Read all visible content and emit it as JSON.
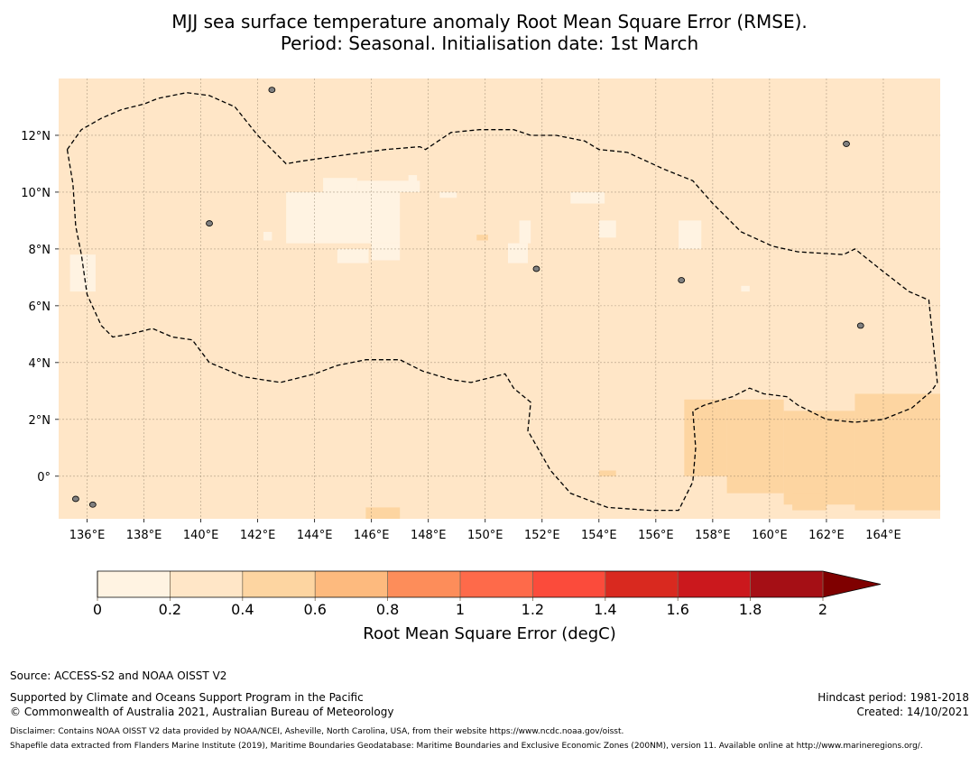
{
  "title_line1": "MJJ sea surface temperature anomaly Root Mean Square Error (RMSE).",
  "title_line2": "Period: Seasonal. Initialisation date: 1st March",
  "map": {
    "lon_range": [
      135.0,
      166.0
    ],
    "lat_range": [
      -1.5,
      14.0
    ],
    "lon_ticks": [
      "136°E",
      "138°E",
      "140°E",
      "142°E",
      "144°E",
      "146°E",
      "148°E",
      "150°E",
      "152°E",
      "154°E",
      "156°E",
      "158°E",
      "160°E",
      "162°E",
      "164°E"
    ],
    "lon_tick_values": [
      136,
      138,
      140,
      142,
      144,
      146,
      148,
      150,
      152,
      154,
      156,
      158,
      160,
      162,
      164
    ],
    "lat_ticks": [
      "12°N",
      "10°N",
      "8°N",
      "6°N",
      "4°N",
      "2°N",
      "0°"
    ],
    "lat_tick_values": [
      12,
      10,
      8,
      6,
      4,
      2,
      0
    ],
    "background_class": "0.2-0.4",
    "dominant_rmse_range_degC": [
      0.2,
      0.4
    ],
    "eez_boundary": [
      [
        135.3,
        11.5
      ],
      [
        135.8,
        12.2
      ],
      [
        136.5,
        12.6
      ],
      [
        137.2,
        12.9
      ],
      [
        138.0,
        13.1
      ],
      [
        138.5,
        13.3
      ],
      [
        139.5,
        13.5
      ],
      [
        140.3,
        13.4
      ],
      [
        141.2,
        13.0
      ],
      [
        142.0,
        12.0
      ],
      [
        143.0,
        11.0
      ],
      [
        143.6,
        11.1
      ],
      [
        145.0,
        11.3
      ],
      [
        146.5,
        11.5
      ],
      [
        147.7,
        11.6
      ],
      [
        147.9,
        11.5
      ],
      [
        148.8,
        12.1
      ],
      [
        149.8,
        12.2
      ],
      [
        151.0,
        12.2
      ],
      [
        151.6,
        12.0
      ],
      [
        152.5,
        12.0
      ],
      [
        153.5,
        11.8
      ],
      [
        154.0,
        11.5
      ],
      [
        155.0,
        11.4
      ],
      [
        156.3,
        10.8
      ],
      [
        157.3,
        10.4
      ],
      [
        158.0,
        9.6
      ],
      [
        159.0,
        8.6
      ],
      [
        160.1,
        8.1
      ],
      [
        161.0,
        7.9
      ],
      [
        162.6,
        7.8
      ],
      [
        163.0,
        8.0
      ],
      [
        164.0,
        7.2
      ],
      [
        164.9,
        6.5
      ],
      [
        165.6,
        6.2
      ],
      [
        165.9,
        3.3
      ],
      [
        165.7,
        3.0
      ],
      [
        165.0,
        2.4
      ],
      [
        164.0,
        2.0
      ],
      [
        163.0,
        1.9
      ],
      [
        162.0,
        2.0
      ],
      [
        161.0,
        2.5
      ],
      [
        160.6,
        2.8
      ],
      [
        159.8,
        2.9
      ],
      [
        159.3,
        3.1
      ],
      [
        158.7,
        2.8
      ],
      [
        157.7,
        2.5
      ],
      [
        157.3,
        2.3
      ],
      [
        157.4,
        1.0
      ],
      [
        157.3,
        -0.2
      ],
      [
        156.8,
        -1.2
      ],
      [
        155.8,
        -1.2
      ],
      [
        154.3,
        -1.1
      ],
      [
        153.0,
        -0.6
      ],
      [
        152.3,
        0.2
      ],
      [
        151.5,
        1.6
      ],
      [
        151.6,
        2.6
      ],
      [
        151.0,
        3.1
      ],
      [
        150.7,
        3.6
      ],
      [
        150.3,
        3.5
      ],
      [
        149.5,
        3.3
      ],
      [
        148.8,
        3.4
      ],
      [
        147.8,
        3.7
      ],
      [
        147.0,
        4.1
      ],
      [
        145.8,
        4.1
      ],
      [
        144.8,
        3.9
      ],
      [
        144.0,
        3.6
      ],
      [
        142.8,
        3.3
      ],
      [
        141.5,
        3.5
      ],
      [
        140.3,
        4.0
      ],
      [
        139.7,
        4.8
      ],
      [
        139.0,
        4.9
      ],
      [
        138.3,
        5.2
      ],
      [
        137.5,
        5.0
      ],
      [
        136.9,
        4.9
      ],
      [
        136.5,
        5.3
      ],
      [
        136.0,
        6.4
      ],
      [
        135.8,
        7.8
      ],
      [
        135.6,
        8.8
      ],
      [
        135.5,
        10.3
      ],
      [
        135.3,
        11.5
      ]
    ],
    "patches_0_to_0_2": [
      [
        143.0,
        10.0,
        147.0,
        8.2
      ],
      [
        144.3,
        10.5,
        145.5,
        10.0
      ],
      [
        145.5,
        10.4,
        147.7,
        10.0
      ],
      [
        146.0,
        8.2,
        147.0,
        7.6
      ],
      [
        144.8,
        8.0,
        145.9,
        7.5
      ],
      [
        148.4,
        10.0,
        149.0,
        9.8
      ],
      [
        147.3,
        10.6,
        147.6,
        10.2
      ],
      [
        151.2,
        9.0,
        151.6,
        8.2
      ],
      [
        150.8,
        8.2,
        151.5,
        7.5
      ],
      [
        154.0,
        9.0,
        154.6,
        8.4
      ],
      [
        156.8,
        9.0,
        157.6,
        8.0
      ],
      [
        153.0,
        10.0,
        154.2,
        9.6
      ],
      [
        135.4,
        7.8,
        136.3,
        6.5
      ],
      [
        142.2,
        8.6,
        142.5,
        8.3
      ],
      [
        159.0,
        6.7,
        159.3,
        6.5
      ]
    ],
    "patches_0_4_to_0_6": [
      [
        158.5,
        2.7,
        160.5,
        -0.6
      ],
      [
        160.5,
        2.3,
        163.0,
        -1.0
      ],
      [
        163.0,
        2.9,
        166.0,
        -1.2
      ],
      [
        157.0,
        2.7,
        158.5,
        0.0
      ],
      [
        154.0,
        0.2,
        154.6,
        0.0
      ],
      [
        145.8,
        -1.1,
        147.0,
        -1.5
      ],
      [
        149.7,
        8.5,
        150.1,
        8.3
      ],
      [
        160.8,
        -0.6,
        162.0,
        -1.2
      ]
    ],
    "islands": [
      [
        142.5,
        13.6
      ],
      [
        140.3,
        8.9
      ],
      [
        156.9,
        6.9
      ],
      [
        163.2,
        5.3
      ],
      [
        151.8,
        7.3
      ],
      [
        135.6,
        -0.8
      ],
      [
        136.2,
        -1.0
      ],
      [
        162.7,
        11.7
      ]
    ]
  },
  "colorbar": {
    "colors": [
      "#fff3e2",
      "#ffe6c7",
      "#fdd5a1",
      "#fdba7e",
      "#fd8d5a",
      "#fe6a4a",
      "#fb4b3b",
      "#d9291f",
      "#cb181d",
      "#a50f15"
    ],
    "extend_color": "#7f0000",
    "tick_labels": [
      "0",
      "0.2",
      "0.4",
      "0.6",
      "0.8",
      "1",
      "1.2",
      "1.4",
      "1.6",
      "1.8",
      "2"
    ],
    "tick_values": [
      0,
      0.2,
      0.4,
      0.6,
      0.8,
      1.0,
      1.2,
      1.4,
      1.6,
      1.8,
      2.0
    ],
    "label": "Root Mean Square Error (degC)"
  },
  "footer": {
    "source": "Source: ACCESS-S2 and NOAA OISST V2",
    "support": "Supported by Climate and Oceans Support Program in the Pacific",
    "copyright": "© Commonwealth of Australia 2021, Australian Bureau of Meteorology",
    "hindcast": "Hindcast period: 1981-2018",
    "created": "Created: 14/10/2021",
    "disclaimer": "Disclaimer: Contains NOAA OISST V2 data provided by NOAA/NCEI, Asheville, North Carolina, USA, from their website https://www.ncdc.noaa.gov/oisst.",
    "shapefile": "Shapefile data extracted from Flanders Marine Institute (2019), Maritime Boundaries Geodatabase: Maritime Boundaries and Exclusive Economic Zones (200NM), version 11. Available online at http://www.marineregions.org/."
  }
}
